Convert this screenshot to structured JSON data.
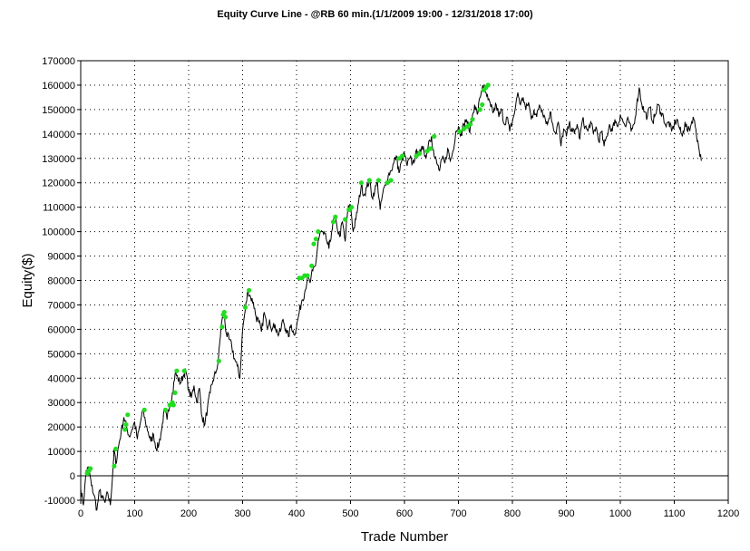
{
  "chart_data": {
    "type": "line",
    "title": "Equity Curve Line - @RB 60 min.(1/1/2009 19:00 - 12/31/2018 17:00)",
    "xlabel": "Trade Number",
    "ylabel": "Equity($)",
    "xlim": [
      0,
      1200
    ],
    "ylim": [
      -10000,
      170000
    ],
    "x_ticks": [
      0,
      100,
      200,
      300,
      400,
      500,
      600,
      700,
      800,
      900,
      1000,
      1100,
      1200
    ],
    "y_ticks": [
      -10000,
      0,
      10000,
      20000,
      30000,
      40000,
      50000,
      60000,
      70000,
      80000,
      90000,
      100000,
      110000,
      120000,
      130000,
      140000,
      150000,
      160000,
      170000
    ],
    "x_tick_labels": [
      "0",
      "100",
      "200",
      "300",
      "400",
      "500",
      "600",
      "700",
      "800",
      "900",
      "1000",
      "1100",
      "1200"
    ],
    "y_tick_labels": [
      "-10000",
      "0",
      "10000",
      "20000",
      "30000",
      "40000",
      "50000",
      "60000",
      "70000",
      "80000",
      "90000",
      "100000",
      "110000",
      "120000",
      "130000",
      "140000",
      "150000",
      "160000",
      "170000"
    ],
    "grid": true,
    "zero_line": true,
    "line_color": "#000000",
    "marker_color": "#22dd22",
    "series": [
      {
        "x": [
          0,
          5,
          10,
          15,
          20,
          25,
          30,
          35,
          40,
          45,
          50,
          55,
          60,
          62,
          65,
          70,
          75,
          80,
          85,
          90,
          95,
          100,
          105,
          110,
          115,
          120,
          125,
          130,
          135,
          140,
          145,
          150,
          155,
          160,
          165,
          170,
          175,
          180,
          185,
          190,
          195,
          200,
          205,
          210,
          215,
          220,
          225,
          230,
          235,
          240,
          245,
          250,
          255,
          260,
          265,
          270,
          275,
          280,
          285,
          290,
          295,
          300,
          305,
          310,
          315,
          320,
          325,
          330,
          335,
          340,
          345,
          350,
          355,
          360,
          365,
          370,
          375,
          380,
          385,
          390,
          395,
          400,
          405,
          410,
          415,
          420,
          425,
          430,
          435,
          440,
          445,
          450,
          455,
          460,
          465,
          470,
          475,
          480,
          485,
          490,
          495,
          500,
          505,
          510,
          515,
          520,
          525,
          530,
          535,
          540,
          545,
          550,
          555,
          560,
          565,
          570,
          575,
          580,
          585,
          590,
          595,
          600,
          605,
          610,
          615,
          620,
          625,
          630,
          635,
          640,
          645,
          650,
          655,
          660,
          665,
          670,
          675,
          680,
          685,
          690,
          695,
          700,
          705,
          710,
          715,
          720,
          725,
          730,
          735,
          740,
          745,
          750,
          755,
          760,
          765,
          770,
          775,
          780,
          785,
          790,
          795,
          800,
          805,
          810,
          815,
          820,
          825,
          830,
          835,
          840,
          845,
          850,
          855,
          860,
          865,
          870,
          875,
          880,
          885,
          890,
          895,
          900,
          905,
          910,
          915,
          920,
          925,
          930,
          935,
          940,
          945,
          950,
          955,
          960,
          965,
          970,
          975,
          980,
          985,
          990,
          995,
          1000,
          1005,
          1010,
          1015,
          1020,
          1025,
          1030,
          1035,
          1040,
          1045,
          1050,
          1055,
          1060,
          1065,
          1070,
          1075,
          1080,
          1085,
          1090,
          1095,
          1100,
          1105,
          1110,
          1115,
          1120,
          1125,
          1130,
          1135,
          1140,
          1145,
          1150
        ],
        "y": [
          -5000,
          -12000,
          2000,
          3000,
          -4000,
          -8000,
          -14000,
          -6000,
          -9000,
          -11000,
          -7000,
          -12000,
          4000,
          11000,
          5000,
          12000,
          18000,
          24000,
          20000,
          16000,
          19000,
          22000,
          15000,
          21000,
          27000,
          22000,
          18000,
          14000,
          17000,
          11000,
          13000,
          19000,
          27000,
          23000,
          29000,
          34000,
          42000,
          40000,
          38000,
          41000,
          43000,
          35000,
          32000,
          37000,
          30000,
          36000,
          24000,
          21000,
          28000,
          34000,
          39000,
          42000,
          47000,
          61000,
          67000,
          58000,
          56000,
          53000,
          48000,
          45000,
          40000,
          60000,
          68000,
          76000,
          73000,
          71000,
          65000,
          63000,
          59000,
          67000,
          61000,
          64000,
          60000,
          62000,
          58000,
          59000,
          64000,
          60000,
          57000,
          62000,
          58000,
          61000,
          67000,
          72000,
          75000,
          81000,
          79000,
          84000,
          86000,
          96000,
          100000,
          99000,
          97000,
          93000,
          100000,
          106000,
          102000,
          98000,
          104000,
          96000,
          109000,
          111000,
          100000,
          105000,
          112000,
          119000,
          115000,
          118000,
          121000,
          114000,
          117000,
          120000,
          109000,
          116000,
          119000,
          123000,
          125000,
          128000,
          131000,
          124000,
          129000,
          132000,
          127000,
          130000,
          128000,
          131000,
          133000,
          132000,
          135000,
          130000,
          137000,
          139000,
          131000,
          128000,
          125000,
          130000,
          128000,
          134000,
          129000,
          133000,
          141000,
          143000,
          140000,
          144000,
          146000,
          141000,
          146000,
          152000,
          148000,
          155000,
          160000,
          157000,
          154000,
          151000,
          149000,
          152000,
          147000,
          150000,
          144000,
          147000,
          141000,
          145000,
          150000,
          157000,
          152000,
          155000,
          150000,
          153000,
          146000,
          150000,
          147000,
          152000,
          150000,
          147000,
          144000,
          149000,
          144000,
          140000,
          145000,
          135000,
          142000,
          139000,
          144000,
          142000,
          140000,
          144000,
          138000,
          146000,
          143000,
          141000,
          145000,
          140000,
          143000,
          137000,
          141000,
          135000,
          139000,
          144000,
          141000,
          146000,
          143000,
          148000,
          145000,
          143000,
          146000,
          141000,
          144000,
          151000,
          159000,
          152000,
          149000,
          147000,
          151000,
          145000,
          148000,
          152000,
          149000,
          147000,
          143000,
          145000,
          141000,
          144000,
          146000,
          142000,
          139000,
          145000,
          141000,
          143000,
          147000,
          142000,
          135000,
          129000
        ]
      }
    ],
    "markers": {
      "x": [
        12,
        15,
        18,
        62,
        65,
        82,
        84,
        87,
        118,
        157,
        165,
        170,
        172,
        175,
        178,
        192,
        256,
        262,
        264,
        266,
        268,
        305,
        312,
        405,
        410,
        415,
        420,
        428,
        432,
        436,
        440,
        468,
        472,
        490,
        497,
        502,
        520,
        535,
        552,
        568,
        575,
        590,
        596,
        622,
        628,
        642,
        648,
        655,
        702,
        710,
        716,
        722,
        726,
        740,
        744,
        747,
        751,
        755
      ],
      "y": [
        1000,
        2000,
        3000,
        4000,
        11000,
        19000,
        21000,
        25000,
        27000,
        27000,
        29000,
        30000,
        29000,
        34000,
        43000,
        43000,
        47000,
        61000,
        66000,
        67000,
        65000,
        69000,
        76000,
        81000,
        81000,
        82000,
        82000,
        86000,
        95000,
        97000,
        100000,
        104000,
        106000,
        105000,
        109000,
        110000,
        120000,
        121000,
        121000,
        120000,
        121000,
        130000,
        131000,
        131000,
        132000,
        133000,
        134000,
        139000,
        141000,
        142000,
        143000,
        144000,
        146000,
        150000,
        152000,
        158000,
        159000,
        160000
      ]
    }
  }
}
